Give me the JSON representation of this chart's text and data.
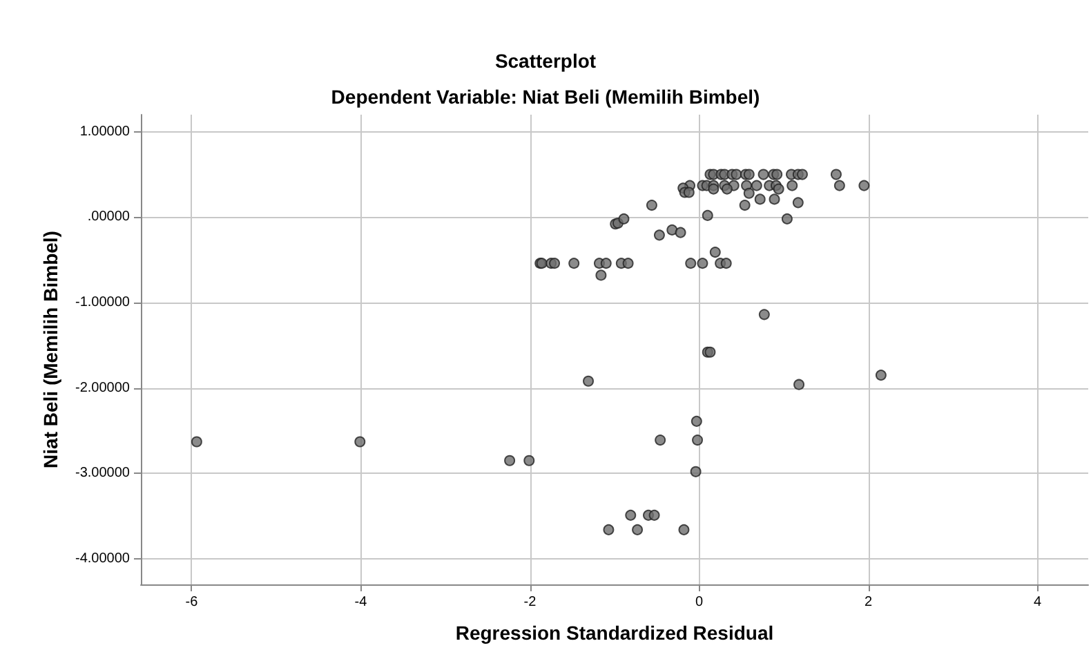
{
  "chart_data": {
    "type": "scatter",
    "title": "Scatterplot",
    "subtitle": "Dependent Variable: Niat Beli (Memilih Bimbel)",
    "xlabel": "Regression Standardized Residual",
    "ylabel": "Niat Beli (Memilih Bimbel)",
    "xlim": [
      -6.6,
      4.6
    ],
    "xticks": [
      -6,
      -4,
      -2,
      0,
      2,
      4
    ],
    "ylim": [
      -4.3,
      1.2
    ],
    "yticks": [
      {
        "value": -4,
        "label": "-4.00000"
      },
      {
        "value": -3,
        "label": "-3.00000"
      },
      {
        "value": -2,
        "label": "-2.00000"
      },
      {
        "value": -1,
        "label": "-1.00000"
      },
      {
        "value": 0,
        "label": ".00000"
      },
      {
        "value": 1,
        "label": "1.00000"
      }
    ],
    "grid": true,
    "marker": "circle",
    "series": [
      {
        "color": "#6e6e6e",
        "x": [
          0.13,
          0.17,
          0.26,
          0.3,
          0.39,
          0.44,
          0.55,
          0.59,
          0.76,
          0.88,
          0.92,
          1.09,
          1.17,
          1.22,
          1.62,
          -0.11,
          0.04,
          0.09,
          0.17,
          0.3,
          0.41,
          0.56,
          0.68,
          0.83,
          0.91,
          1.1,
          1.66,
          1.95,
          -0.19,
          -0.17,
          -0.12,
          0.17,
          0.33,
          0.59,
          0.94,
          0.54,
          0.72,
          0.89,
          1.17,
          -0.56,
          0.1,
          1.04,
          -0.99,
          -0.96,
          -0.89,
          -0.47,
          -0.32,
          -0.22,
          0.19,
          -1.88,
          -1.86,
          -1.75,
          -1.71,
          -1.48,
          -1.18,
          -1.1,
          -0.92,
          -0.84,
          -0.1,
          0.04,
          0.25,
          0.32,
          -1.16,
          0.77,
          0.1,
          0.13,
          -5.94,
          -4.01,
          -2.24,
          -2.01,
          -1.31,
          1.18,
          2.15,
          -0.03,
          -0.46,
          -0.02,
          -0.04,
          -0.81,
          -0.6,
          -0.53,
          -1.07,
          -0.73,
          -0.18
        ],
        "values": [
          0.5,
          0.5,
          0.5,
          0.5,
          0.5,
          0.5,
          0.5,
          0.5,
          0.5,
          0.5,
          0.5,
          0.5,
          0.5,
          0.5,
          0.5,
          0.37,
          0.37,
          0.37,
          0.37,
          0.37,
          0.37,
          0.37,
          0.37,
          0.37,
          0.37,
          0.37,
          0.37,
          0.37,
          0.34,
          0.29,
          0.29,
          0.33,
          0.33,
          0.28,
          0.33,
          0.14,
          0.21,
          0.21,
          0.17,
          0.14,
          0.02,
          -0.02,
          -0.08,
          -0.07,
          -0.02,
          -0.21,
          -0.15,
          -0.18,
          -0.41,
          -0.54,
          -0.54,
          -0.54,
          -0.54,
          -0.54,
          -0.54,
          -0.54,
          -0.54,
          -0.54,
          -0.54,
          -0.54,
          -0.54,
          -0.54,
          -0.68,
          -1.14,
          -1.58,
          -1.58,
          -2.63,
          -2.63,
          -2.85,
          -2.85,
          -1.92,
          -1.96,
          -1.85,
          -2.39,
          -2.61,
          -2.61,
          -2.98,
          -3.49,
          -3.49,
          -3.49,
          -3.66,
          -3.66,
          -3.66
        ]
      }
    ]
  }
}
